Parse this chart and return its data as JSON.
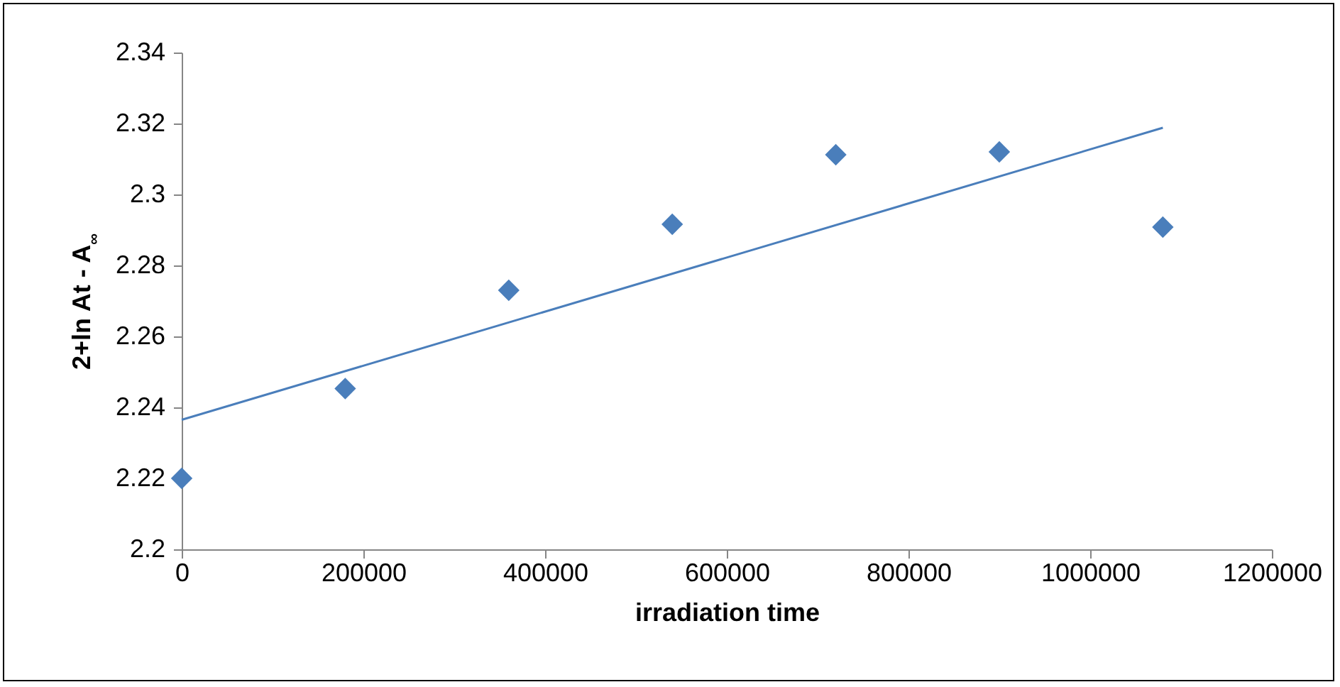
{
  "chart_data": {
    "type": "scatter",
    "xlabel": "irradiation time",
    "ylabel": "2+ln At - A$_{∞}$",
    "x": [
      0,
      180000,
      360000,
      540000,
      720000,
      900000,
      1080000
    ],
    "series": [
      {
        "color": "#4a7ebb",
        "marker": "diamond",
        "values": [
          2.22,
          2.2453,
          2.273,
          2.2916,
          2.3112,
          2.312,
          2.2908
        ]
      },
      {
        "type": "line",
        "color": "#4a7ebb",
        "x": [
          0,
          1080000
        ],
        "values": [
          2.2365,
          2.3188
        ]
      }
    ],
    "xlim": [
      0,
      1200000
    ],
    "xticks": [
      0,
      200000,
      400000,
      600000,
      800000,
      1000000,
      1200000
    ],
    "ylim": [
      2.2,
      2.34
    ],
    "yticks": [
      2.2,
      2.22,
      2.24,
      2.26,
      2.28,
      2.3,
      2.32,
      2.34
    ],
    "grid": false
  }
}
